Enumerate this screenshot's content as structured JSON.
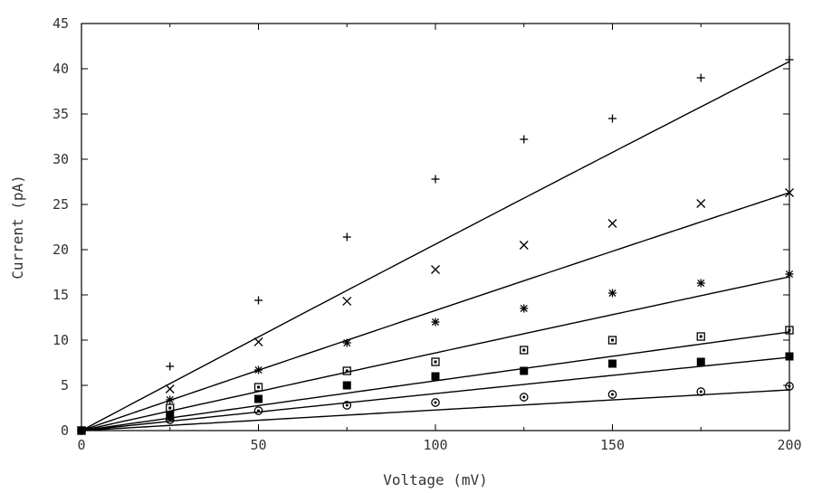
{
  "chart_data": {
    "type": "scatter",
    "title": "",
    "xlabel": "Voltage (mV)",
    "ylabel": "Current (pA)",
    "xlim": [
      0,
      200
    ],
    "ylim": [
      0,
      45
    ],
    "xticks": [
      "0",
      "50",
      "100",
      "150",
      "200"
    ],
    "yticks": [
      "0",
      "5",
      "10",
      "15",
      "20",
      "25",
      "30",
      "35",
      "40",
      "45"
    ],
    "grid": false,
    "legend": "none",
    "x": [
      0,
      25,
      50,
      75,
      100,
      125,
      150,
      175,
      200
    ],
    "series": [
      {
        "marker": "plus",
        "values": [
          0,
          7.1,
          14.4,
          21.4,
          27.8,
          32.2,
          34.5,
          39.0,
          41.0
        ],
        "fit_end": 40.8
      },
      {
        "marker": "cross",
        "values": [
          0,
          4.6,
          9.8,
          14.3,
          17.8,
          20.5,
          22.9,
          25.1,
          26.3
        ],
        "fit_end": 26.3
      },
      {
        "marker": "asterisk",
        "values": [
          0,
          3.4,
          6.7,
          9.7,
          12.0,
          13.5,
          15.2,
          16.3,
          17.3
        ],
        "fit_end": 17.0
      },
      {
        "marker": "open-square",
        "values": [
          0,
          2.5,
          4.8,
          6.6,
          7.6,
          8.9,
          10.0,
          10.4,
          11.1
        ],
        "fit_end": 10.9
      },
      {
        "marker": "filled-square",
        "values": [
          0,
          1.6,
          3.5,
          5.0,
          6.0,
          6.6,
          7.4,
          7.6,
          8.2
        ],
        "fit_end": 8.1
      },
      {
        "marker": "open-circle",
        "values": [
          0,
          1.2,
          2.2,
          2.8,
          3.1,
          3.7,
          4.0,
          4.3,
          4.9
        ],
        "fit_end": 4.5
      }
    ]
  }
}
